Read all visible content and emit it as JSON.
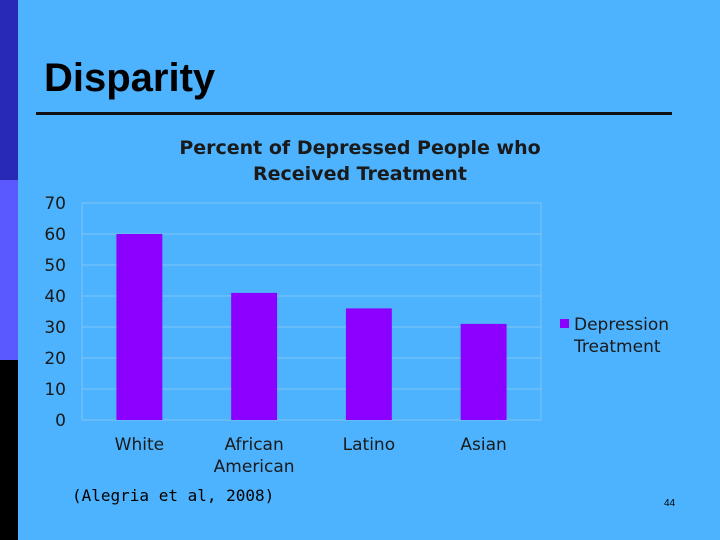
{
  "slide": {
    "title": "Disparity",
    "citation": "(Alegria et al, 2008)",
    "page_number": "44"
  },
  "colors": {
    "background": "#4db3ff",
    "bar": "#8c00ff",
    "left_bar_top": "#2929b8",
    "left_bar_mid": "#5959ff",
    "left_bar_bottom": "#000000"
  },
  "chart_data": {
    "type": "bar",
    "title_lines": [
      "Percent of Depressed People who",
      "Received Treatment"
    ],
    "categories": [
      [
        "White"
      ],
      [
        "African",
        "American"
      ],
      [
        "Latino"
      ],
      [
        "Asian"
      ]
    ],
    "series": [
      {
        "name": "Depression Treatment",
        "legend_lines": [
          "Depression",
          "Treatment"
        ],
        "values": [
          60,
          41,
          36,
          31
        ]
      }
    ],
    "ylim": [
      0,
      70
    ],
    "yticks": [
      "0",
      "10",
      "20",
      "30",
      "40",
      "50",
      "60",
      "70"
    ],
    "grid": true,
    "legend_position": "right"
  }
}
